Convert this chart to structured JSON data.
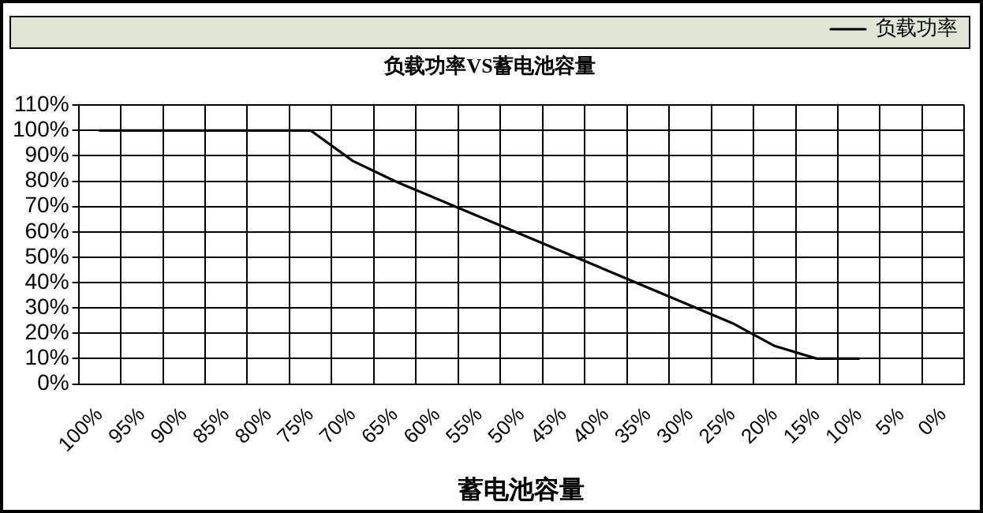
{
  "chart_data": {
    "type": "line",
    "title": "负载功率VS蓄电池容量",
    "xlabel": "蓄电池容量",
    "categories": [
      "100%",
      "95%",
      "90%",
      "85%",
      "80%",
      "75%",
      "70%",
      "65%",
      "60%",
      "55%",
      "50%",
      "45%",
      "40%",
      "35%",
      "30%",
      "25%",
      "20%",
      "15%",
      "10%",
      "5%",
      "0%"
    ],
    "series": [
      {
        "name": "负载功率",
        "color": "#000000",
        "values": [
          100,
          100,
          100,
          100,
          100,
          100,
          88,
          80,
          73,
          66,
          59,
          52,
          45,
          38,
          31,
          24,
          15,
          10,
          10,
          null,
          null
        ]
      }
    ],
    "ylim": [
      0,
      110
    ],
    "yticks": [
      {
        "value": 0,
        "label": "0%"
      },
      {
        "value": 10,
        "label": "10%"
      },
      {
        "value": 20,
        "label": "20%"
      },
      {
        "value": 30,
        "label": "30%"
      },
      {
        "value": 40,
        "label": "40%"
      },
      {
        "value": 50,
        "label": "50%"
      },
      {
        "value": 60,
        "label": "60%"
      },
      {
        "value": 70,
        "label": "70%"
      },
      {
        "value": 80,
        "label": "80%"
      },
      {
        "value": 90,
        "label": "90%"
      },
      {
        "value": 100,
        "label": "100%"
      },
      {
        "value": 110,
        "label": "110%"
      }
    ],
    "grid": true,
    "legend": "top right",
    "marker": "none",
    "line_style": "solid"
  }
}
